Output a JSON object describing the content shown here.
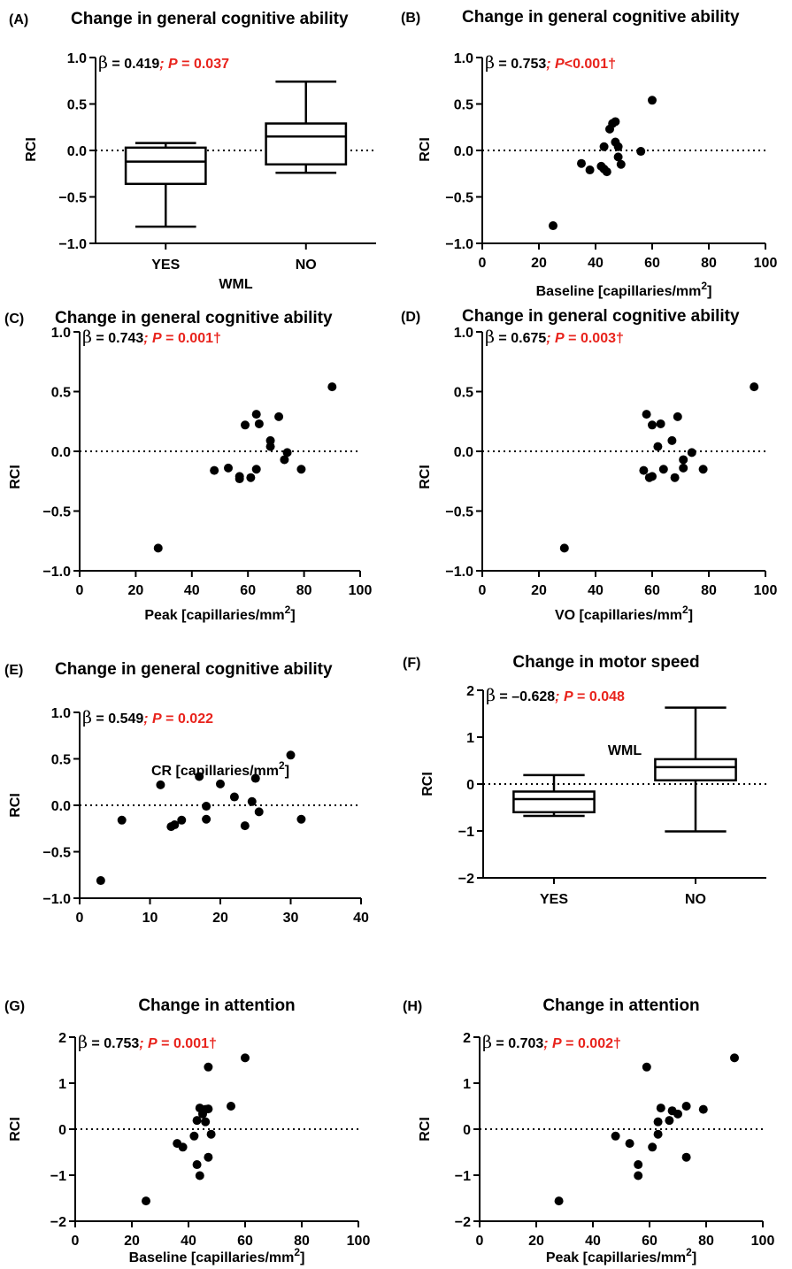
{
  "chart_data": [
    {
      "panel": "(A)",
      "type": "box",
      "title": "Change in general cognitive ability",
      "ylabel": "RCI",
      "xlabel": "WML",
      "ylim": [
        -1.0,
        1.0
      ],
      "yticks": [
        1.0,
        0.5,
        0.0,
        -0.5,
        -1.0
      ],
      "ytick_labels": [
        "1.0",
        "0.5",
        "0.0",
        "−0.5",
        "−1.0"
      ],
      "categories": [
        "YES",
        "NO"
      ],
      "boxes": [
        {
          "category": "YES",
          "min": -0.82,
          "q1": -0.36,
          "median": -0.12,
          "q3": 0.03,
          "max": 0.08
        },
        {
          "category": "NO",
          "min": -0.24,
          "q1": -0.15,
          "median": 0.15,
          "q3": 0.29,
          "max": 0.74
        }
      ],
      "reference_line": 0,
      "stat_beta": "β",
      "stat_beta_value": " = 0.419",
      "stat_p_prefix": "; ",
      "stat_p_label": "P",
      "stat_p_value": " = 0.037"
    },
    {
      "panel": "(B)",
      "type": "scatter",
      "title": "Change in general cognitive ability",
      "ylabel": "RCI",
      "xlabel": "Baseline [capillaries/mm",
      "xlabel_sup": "2",
      "xlabel_suffix": "]",
      "xlim": [
        0,
        100
      ],
      "ylim": [
        -1.0,
        1.0
      ],
      "xticks": [
        0,
        20,
        40,
        60,
        80,
        100
      ],
      "yticks": [
        1.0,
        0.5,
        0.0,
        -0.5,
        -1.0
      ],
      "ytick_labels": [
        "1.0",
        "0.5",
        "0.0",
        "−0.5",
        "−1.0"
      ],
      "points": [
        [
          25,
          -0.81
        ],
        [
          35,
          -0.14
        ],
        [
          38,
          -0.21
        ],
        [
          42,
          -0.17
        ],
        [
          43,
          0.04
        ],
        [
          43,
          -0.2
        ],
        [
          44,
          -0.23
        ],
        [
          45,
          0.23
        ],
        [
          46,
          0.29
        ],
        [
          47,
          0.09
        ],
        [
          47,
          0.31
        ],
        [
          48,
          0.04
        ],
        [
          48,
          -0.07
        ],
        [
          49,
          -0.15
        ],
        [
          56,
          -0.01
        ],
        [
          60,
          0.54
        ]
      ],
      "reference_line": 0,
      "stat_beta": "β",
      "stat_beta_value": " = 0.753",
      "stat_p_prefix": "; ",
      "stat_p_label": "P",
      "stat_p_value": "<0.001†"
    },
    {
      "panel": "(C)",
      "type": "scatter",
      "title": "Change in general cognitive ability",
      "ylabel": "RCI",
      "xlabel": "Peak [capillaries/mm",
      "xlabel_sup": "2",
      "xlabel_suffix": "]",
      "xlim": [
        0,
        100
      ],
      "ylim": [
        -1.0,
        1.0
      ],
      "xticks": [
        0,
        20,
        40,
        60,
        80,
        100
      ],
      "yticks": [
        1.0,
        0.5,
        0.0,
        -0.5,
        -1.0
      ],
      "ytick_labels": [
        "1.0",
        "0.5",
        "0.0",
        "−0.5",
        "−1.0"
      ],
      "points": [
        [
          28,
          -0.81
        ],
        [
          48,
          -0.16
        ],
        [
          53,
          -0.14
        ],
        [
          57,
          -0.21
        ],
        [
          57,
          -0.23
        ],
        [
          59,
          0.22
        ],
        [
          61,
          -0.22
        ],
        [
          63,
          -0.15
        ],
        [
          63,
          0.31
        ],
        [
          64,
          0.23
        ],
        [
          68,
          0.09
        ],
        [
          68,
          0.04
        ],
        [
          71,
          0.29
        ],
        [
          73,
          -0.07
        ],
        [
          74,
          -0.01
        ],
        [
          79,
          -0.15
        ],
        [
          90,
          0.54
        ]
      ],
      "reference_line": 0,
      "stat_beta": "β",
      "stat_beta_value": " = 0.743",
      "stat_p_prefix": "; ",
      "stat_p_label": "P",
      "stat_p_value": " = 0.001†"
    },
    {
      "panel": "(D)",
      "type": "scatter",
      "title": "Change in general cognitive ability",
      "ylabel": "RCI",
      "xlabel": "VO [capillaries/mm",
      "xlabel_sup": "2",
      "xlabel_suffix": "]",
      "xlim": [
        0,
        100
      ],
      "ylim": [
        -1.0,
        1.0
      ],
      "xticks": [
        0,
        20,
        40,
        60,
        80,
        100
      ],
      "yticks": [
        1.0,
        0.5,
        0.0,
        -0.5,
        -1.0
      ],
      "ytick_labels": [
        "1.0",
        "0.5",
        "0.0",
        "−0.5",
        "−1.0"
      ],
      "points": [
        [
          29,
          -0.81
        ],
        [
          57,
          -0.16
        ],
        [
          58,
          0.31
        ],
        [
          59,
          -0.22
        ],
        [
          60,
          -0.21
        ],
        [
          60,
          0.22
        ],
        [
          62,
          0.04
        ],
        [
          63,
          0.23
        ],
        [
          64,
          -0.15
        ],
        [
          67,
          0.09
        ],
        [
          68,
          -0.22
        ],
        [
          69,
          0.29
        ],
        [
          71,
          -0.07
        ],
        [
          71,
          -0.14
        ],
        [
          74,
          -0.01
        ],
        [
          78,
          -0.15
        ],
        [
          96,
          0.54
        ]
      ],
      "reference_line": 0,
      "stat_beta": "β",
      "stat_beta_value": " = 0.675",
      "stat_p_prefix": "; ",
      "stat_p_label": "P",
      "stat_p_value": " = 0.003†"
    },
    {
      "panel": "(E)",
      "type": "scatter",
      "title": "Change in general cognitive ability",
      "ylabel": "RCI",
      "xlabel": "CR [capillaries/mm",
      "xlabel_sup": "2",
      "xlabel_suffix": "]",
      "xlim": [
        0,
        40
      ],
      "ylim": [
        -1.0,
        1.0
      ],
      "xticks": [
        0,
        10,
        20,
        30,
        40
      ],
      "yticks": [
        1.0,
        0.5,
        0.0,
        -0.5,
        -1.0
      ],
      "ytick_labels": [
        "1.0",
        "0.5",
        "0.0",
        "−0.5",
        "−1.0"
      ],
      "points": [
        [
          3,
          -0.81
        ],
        [
          6,
          -0.16
        ],
        [
          11.5,
          0.22
        ],
        [
          13,
          -0.23
        ],
        [
          13.5,
          -0.21
        ],
        [
          14.5,
          -0.16
        ],
        [
          17,
          0.31
        ],
        [
          18,
          -0.01
        ],
        [
          18,
          -0.15
        ],
        [
          20,
          0.23
        ],
        [
          22,
          0.09
        ],
        [
          23.5,
          -0.22
        ],
        [
          24.5,
          0.04
        ],
        [
          25,
          0.29
        ],
        [
          25.5,
          -0.07
        ],
        [
          30,
          0.54
        ],
        [
          31.5,
          -0.15
        ]
      ],
      "reference_line": 0,
      "stat_beta": "β",
      "stat_beta_value": " = 0.549",
      "stat_p_prefix": "; ",
      "stat_p_label": "P",
      "stat_p_value": " = 0.022"
    },
    {
      "panel": "(F)",
      "type": "box",
      "title": "Change in motor speed",
      "ylabel": "RCI",
      "xlabel": "WML",
      "ylim": [
        -2,
        2
      ],
      "yticks": [
        2,
        1,
        0,
        -1,
        -2
      ],
      "ytick_labels": [
        "2",
        "1",
        "0",
        "−1",
        "−2"
      ],
      "categories": [
        "YES",
        "NO"
      ],
      "boxes": [
        {
          "category": "YES",
          "min": -0.68,
          "q1": -0.6,
          "median": -0.32,
          "q3": -0.16,
          "max": 0.19
        },
        {
          "category": "NO",
          "min": -1.01,
          "q1": 0.08,
          "median": 0.36,
          "q3": 0.53,
          "max": 1.63
        }
      ],
      "reference_line": 0,
      "stat_beta": "β",
      "stat_beta_value": " = –0.628",
      "stat_p_prefix": "; ",
      "stat_p_label": "P",
      "stat_p_value": " = 0.048"
    },
    {
      "panel": "(G)",
      "type": "scatter",
      "title": "Change in attention",
      "ylabel": "RCI",
      "xlabel": "Baseline [capillaries/mm",
      "xlabel_sup": "2",
      "xlabel_suffix": "]",
      "xlim": [
        0,
        100
      ],
      "ylim": [
        -2,
        2
      ],
      "xticks": [
        0,
        20,
        40,
        60,
        80,
        100
      ],
      "yticks": [
        2,
        1,
        0,
        -1,
        -2
      ],
      "ytick_labels": [
        "2",
        "1",
        "0",
        "−1",
        "−2"
      ],
      "points": [
        [
          25,
          -1.56
        ],
        [
          36,
          -0.31
        ],
        [
          38,
          -0.39
        ],
        [
          42,
          -0.15
        ],
        [
          43,
          0.19
        ],
        [
          43,
          -0.77
        ],
        [
          44,
          -1.01
        ],
        [
          44,
          0.46
        ],
        [
          45,
          0.33
        ],
        [
          46,
          0.43
        ],
        [
          46,
          0.16
        ],
        [
          47,
          1.35
        ],
        [
          47,
          0.44
        ],
        [
          47,
          -0.61
        ],
        [
          48,
          -0.11
        ],
        [
          55,
          0.5
        ],
        [
          60,
          1.55
        ]
      ],
      "reference_line": 0,
      "stat_beta": "β",
      "stat_beta_value": " = 0.753",
      "stat_p_prefix": "; ",
      "stat_p_label": "P",
      "stat_p_value": " = 0.001†"
    },
    {
      "panel": "(H)",
      "type": "scatter",
      "title": "Change in attention",
      "ylabel": "RCI",
      "xlabel": "Peak [capillaries/mm",
      "xlabel_sup": "2",
      "xlabel_suffix": "]",
      "xlim": [
        0,
        100
      ],
      "ylim": [
        -2,
        2
      ],
      "xticks": [
        0,
        20,
        40,
        60,
        80,
        100
      ],
      "yticks": [
        2,
        1,
        0,
        -1,
        -2
      ],
      "ytick_labels": [
        "2",
        "1",
        "0",
        "−1",
        "−2"
      ],
      "points": [
        [
          28,
          -1.56
        ],
        [
          48,
          -0.15
        ],
        [
          53,
          -0.31
        ],
        [
          56,
          -0.77
        ],
        [
          56,
          -1.01
        ],
        [
          59,
          1.35
        ],
        [
          61,
          -0.39
        ],
        [
          63,
          0.16
        ],
        [
          63,
          -0.11
        ],
        [
          64,
          0.46
        ],
        [
          67,
          0.19
        ],
        [
          68,
          0.4
        ],
        [
          70,
          0.33
        ],
        [
          73,
          0.5
        ],
        [
          73,
          -0.61
        ],
        [
          79,
          0.43
        ],
        [
          90,
          1.55
        ]
      ],
      "reference_line": 0,
      "stat_beta": "β",
      "stat_beta_value": " = 0.703",
      "stat_p_prefix": "; ",
      "stat_p_label": "P",
      "stat_p_value": " = 0.002†"
    }
  ]
}
